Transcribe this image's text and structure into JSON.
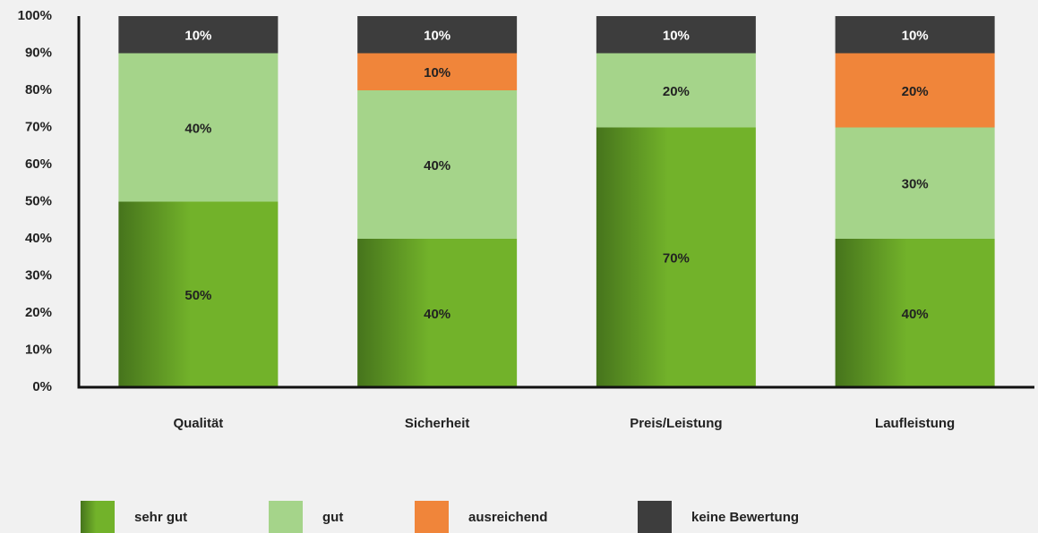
{
  "chart_data": {
    "type": "stacked-bar",
    "categories": [
      "Qualität",
      "Sicherheit",
      "Preis/Leistung",
      "Laufleistung"
    ],
    "series": [
      {
        "name": "sehr gut",
        "color": "#72b22a",
        "values": [
          50,
          40,
          70,
          40
        ],
        "value_labels": [
          "50%",
          "40%",
          "70%",
          "40%"
        ]
      },
      {
        "name": "gut",
        "color": "#a5d48a",
        "values": [
          40,
          40,
          20,
          30
        ],
        "value_labels": [
          "40%",
          "40%",
          "20%",
          "30%"
        ]
      },
      {
        "name": "ausreichend",
        "color": "#f0853a",
        "values": [
          0,
          10,
          0,
          20
        ],
        "value_labels": [
          null,
          "10%",
          null,
          "20%"
        ]
      },
      {
        "name": "keine Bewertung",
        "color": "#3d3d3d",
        "values": [
          10,
          10,
          10,
          10
        ],
        "value_labels": [
          "10%",
          "10%",
          "10%",
          "10%"
        ]
      }
    ],
    "ylim": [
      0,
      100
    ],
    "yticks": [
      {
        "value": 0,
        "label": "0%"
      },
      {
        "value": 10,
        "label": "10%"
      },
      {
        "value": 20,
        "label": "20%"
      },
      {
        "value": 30,
        "label": "30%"
      },
      {
        "value": 40,
        "label": "40%"
      },
      {
        "value": 50,
        "label": "50%"
      },
      {
        "value": 60,
        "label": "60%"
      },
      {
        "value": 70,
        "label": "70%"
      },
      {
        "value": 80,
        "label": "80%"
      },
      {
        "value": 90,
        "label": "90%"
      },
      {
        "value": 100,
        "label": "100%"
      }
    ],
    "grid": false
  }
}
